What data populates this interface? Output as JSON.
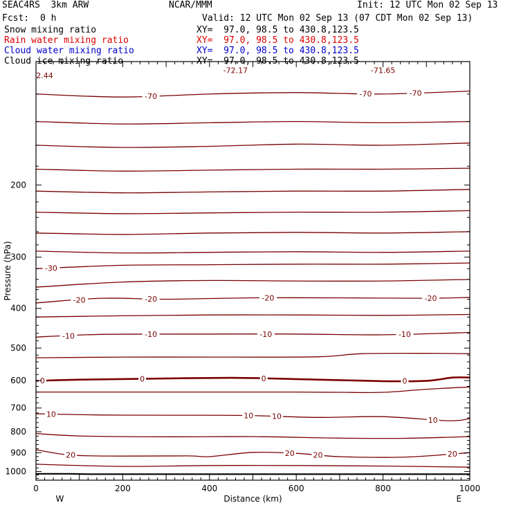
{
  "header": {
    "model": "SEAC4RS  3km ARW",
    "org": "NCAR/MMM",
    "init": "Init: 12 UTC Mon 02 Sep 13",
    "fcst_label": "Fcst:",
    "fcst_value": "0 h",
    "valid": "Valid: 12 UTC Mon 02 Sep 13 (07 CDT Mon 02 Sep 13)"
  },
  "fields": [
    {
      "name": "Snow mixing ratio",
      "xy": "XY=  97.0, 98.5 to 430.8,123.5",
      "color": "#000000"
    },
    {
      "name": "Rain water mixing ratio",
      "xy": "XY=  97.0, 98.5 to 430.8,123.5",
      "color": "#e00000"
    },
    {
      "name": "Cloud water mixing ratio",
      "xy": "XY=  97.0, 98.5 to 430.8,123.5",
      "color": "#0000cc"
    },
    {
      "name": "Cloud ice mixing ratio",
      "xy": "XY=  97.0, 98.5 to 430.8,123.5",
      "color": "#000000"
    }
  ],
  "chart_data": {
    "type": "contour",
    "title": "",
    "xlabel": "Distance (km)",
    "ylabel": "Pressure (hPa)",
    "xlim": [
      0,
      1000
    ],
    "ylim": [
      1050,
      100
    ],
    "x_ticks": [
      0,
      200,
      400,
      600,
      800,
      1000
    ],
    "y_ticks": [
      200,
      300,
      400,
      500,
      600,
      700,
      800,
      900,
      1000
    ],
    "x_end_labels": {
      "left": "W",
      "right": "E"
    },
    "line_color": "#7a0000",
    "contour_interval": 5,
    "extreme_labels": [
      {
        "text": "2.44",
        "x": 20,
        "p": 108
      },
      {
        "text": "-72.17",
        "x": 460,
        "p": 105
      },
      {
        "text": "-71.65",
        "x": 800,
        "p": 105
      }
    ],
    "contours": [
      {
        "value": -70,
        "bold": false,
        "points": [
          [
            0,
            120
          ],
          [
            200,
            122
          ],
          [
            400,
            120
          ],
          [
            600,
            119
          ],
          [
            800,
            120
          ],
          [
            1000,
            118
          ]
        ],
        "labels": [
          [
            265,
            -70
          ],
          [
            760,
            -70
          ],
          [
            875,
            -70
          ]
        ]
      },
      {
        "value": -65,
        "bold": false,
        "points": [
          [
            0,
            140
          ],
          [
            200,
            142
          ],
          [
            400,
            141
          ],
          [
            600,
            140
          ],
          [
            800,
            141
          ],
          [
            1000,
            140
          ]
        ],
        "labels": []
      },
      {
        "value": -60,
        "bold": false,
        "points": [
          [
            0,
            160
          ],
          [
            200,
            162
          ],
          [
            400,
            161
          ],
          [
            600,
            159
          ],
          [
            800,
            160
          ],
          [
            1000,
            158
          ]
        ],
        "labels": []
      },
      {
        "value": -55,
        "bold": false,
        "points": [
          [
            0,
            183
          ],
          [
            200,
            185
          ],
          [
            400,
            184
          ],
          [
            600,
            183
          ],
          [
            800,
            183
          ],
          [
            1000,
            182
          ]
        ],
        "labels": []
      },
      {
        "value": -50,
        "bold": false,
        "points": [
          [
            0,
            207
          ],
          [
            200,
            209
          ],
          [
            400,
            208
          ],
          [
            600,
            207
          ],
          [
            800,
            207
          ],
          [
            1000,
            205
          ]
        ],
        "labels": []
      },
      {
        "value": -45,
        "bold": false,
        "points": [
          [
            0,
            233
          ],
          [
            200,
            235
          ],
          [
            400,
            234
          ],
          [
            600,
            233
          ],
          [
            800,
            233
          ],
          [
            1000,
            231
          ]
        ],
        "labels": []
      },
      {
        "value": -40,
        "bold": false,
        "points": [
          [
            0,
            262
          ],
          [
            200,
            264
          ],
          [
            400,
            262
          ],
          [
            600,
            261
          ],
          [
            800,
            262
          ],
          [
            1000,
            260
          ]
        ],
        "labels": []
      },
      {
        "value": -35,
        "bold": false,
        "points": [
          [
            0,
            290
          ],
          [
            200,
            293
          ],
          [
            400,
            292
          ],
          [
            600,
            291
          ],
          [
            800,
            292
          ],
          [
            1000,
            290
          ]
        ],
        "labels": []
      },
      {
        "value": -30,
        "bold": false,
        "points": [
          [
            0,
            320
          ],
          [
            200,
            314
          ],
          [
            400,
            313
          ],
          [
            600,
            312
          ],
          [
            800,
            312
          ],
          [
            1000,
            310
          ]
        ],
        "labels": [
          [
            35,
            -30
          ]
        ]
      },
      {
        "value": -25,
        "bold": false,
        "points": [
          [
            0,
            355
          ],
          [
            200,
            345
          ],
          [
            400,
            342
          ],
          [
            600,
            343
          ],
          [
            800,
            343
          ],
          [
            1000,
            340
          ]
        ],
        "labels": []
      },
      {
        "value": -20,
        "bold": false,
        "points": [
          [
            0,
            388
          ],
          [
            150,
            378
          ],
          [
            300,
            380
          ],
          [
            500,
            377
          ],
          [
            700,
            377
          ],
          [
            900,
            378
          ],
          [
            1000,
            376
          ]
        ],
        "labels": [
          [
            100,
            -20
          ],
          [
            265,
            -20
          ],
          [
            535,
            -20
          ],
          [
            910,
            -20
          ]
        ]
      },
      {
        "value": -15,
        "bold": false,
        "points": [
          [
            0,
            420
          ],
          [
            200,
            417
          ],
          [
            400,
            415
          ],
          [
            600,
            415
          ],
          [
            800,
            416
          ],
          [
            1000,
            414
          ]
        ],
        "labels": []
      },
      {
        "value": -10,
        "bold": false,
        "points": [
          [
            0,
            470
          ],
          [
            150,
            463
          ],
          [
            400,
            462
          ],
          [
            600,
            462
          ],
          [
            800,
            464
          ],
          [
            1000,
            458
          ]
        ],
        "labels": [
          [
            75,
            -10
          ],
          [
            265,
            -10
          ],
          [
            530,
            -10
          ],
          [
            850,
            -10
          ]
        ]
      },
      {
        "value": -5,
        "bold": false,
        "points": [
          [
            0,
            528
          ],
          [
            200,
            526
          ],
          [
            400,
            526
          ],
          [
            650,
            525
          ],
          [
            750,
            516
          ],
          [
            900,
            515
          ],
          [
            1000,
            516
          ]
        ],
        "labels": []
      },
      {
        "value": 0,
        "bold": true,
        "points": [
          [
            0,
            601
          ],
          [
            100,
            597
          ],
          [
            250,
            594
          ],
          [
            450,
            591
          ],
          [
            600,
            595
          ],
          [
            800,
            602
          ],
          [
            900,
            601
          ],
          [
            960,
            590
          ],
          [
            1000,
            590
          ]
        ],
        "labels": [
          [
            15,
            0
          ],
          [
            245,
            0
          ],
          [
            525,
            0
          ],
          [
            850,
            0
          ]
        ]
      },
      {
        "value": 5,
        "bold": false,
        "points": [
          [
            0,
            640
          ],
          [
            200,
            640
          ],
          [
            400,
            640
          ],
          [
            600,
            640
          ],
          [
            700,
            641
          ],
          [
            800,
            641
          ],
          [
            900,
            630
          ],
          [
            1000,
            622
          ]
        ],
        "labels": []
      },
      {
        "value": 10,
        "bold": false,
        "points": [
          [
            0,
            723
          ],
          [
            150,
            728
          ],
          [
            300,
            729
          ],
          [
            480,
            730
          ],
          [
            650,
            738
          ],
          [
            800,
            735
          ],
          [
            950,
            752
          ],
          [
            1000,
            743
          ]
        ],
        "labels": [
          [
            35,
            10
          ],
          [
            490,
            10
          ],
          [
            555,
            10
          ],
          [
            915,
            10
          ]
        ]
      },
      {
        "value": 15,
        "bold": false,
        "points": [
          [
            0,
            808
          ],
          [
            100,
            819
          ],
          [
            300,
            823
          ],
          [
            500,
            822
          ],
          [
            700,
            829
          ],
          [
            850,
            830
          ],
          [
            1000,
            822
          ]
        ],
        "labels": []
      },
      {
        "value": 20,
        "bold": false,
        "points": [
          [
            0,
            885
          ],
          [
            80,
            912
          ],
          [
            200,
            917
          ],
          [
            350,
            916
          ],
          [
            400,
            920
          ],
          [
            500,
            898
          ],
          [
            600,
            903
          ],
          [
            700,
            920
          ],
          [
            850,
            922
          ],
          [
            1000,
            900
          ]
        ],
        "labels": [
          [
            80,
            20
          ],
          [
            585,
            20
          ],
          [
            650,
            20
          ],
          [
            960,
            20
          ]
        ]
      },
      {
        "value": 25,
        "bold": false,
        "points": [
          [
            0,
            960
          ],
          [
            200,
            972
          ],
          [
            400,
            967
          ],
          [
            600,
            967
          ],
          [
            800,
            970
          ],
          [
            1000,
            976
          ]
        ],
        "labels": []
      }
    ],
    "surface": {
      "points": [
        [
          0,
          1013
        ],
        [
          80,
          1013
        ],
        [
          120,
          1015
        ],
        [
          1000,
          1015
        ]
      ]
    }
  }
}
